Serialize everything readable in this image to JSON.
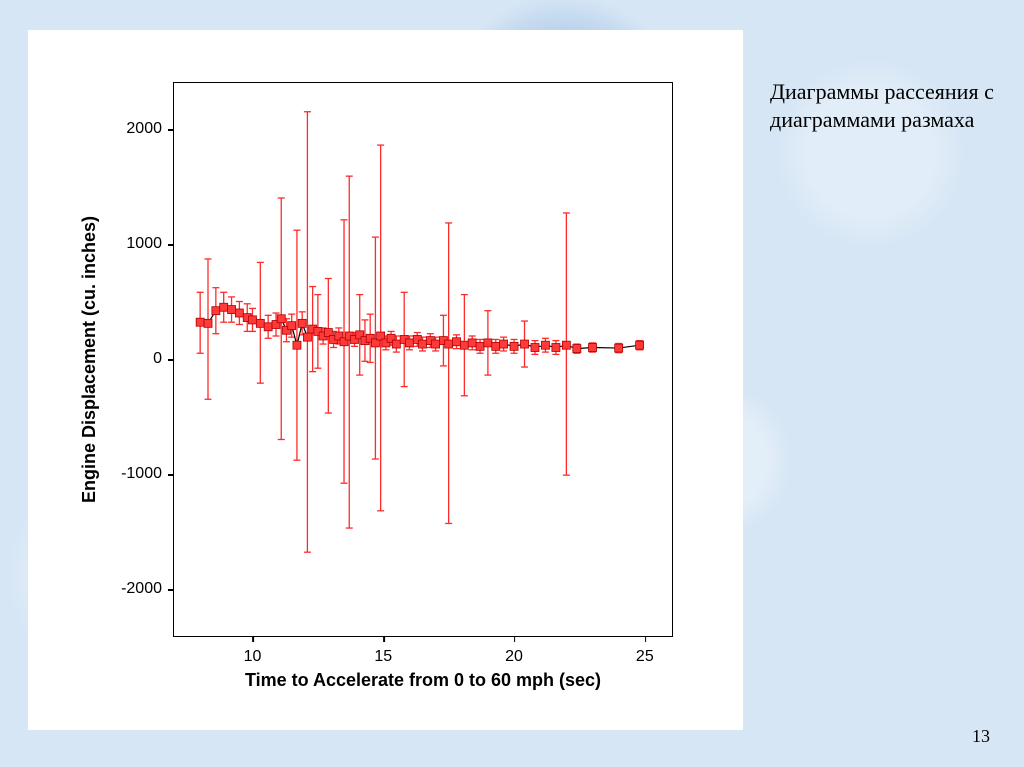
{
  "slide": {
    "background_color": "#d6e6f5",
    "caption": "Диаграммы рассеяния с диаграммами размаха",
    "page_number": "13"
  },
  "chart": {
    "type": "scatter-with-errorbars",
    "panel_bg": "#ffffff",
    "plot_border_color": "#000000",
    "x_label": "Time to Accelerate from 0 to 60 mph (sec)",
    "y_label": "Engine Displacement (cu. inches)",
    "label_font": "Arial",
    "label_fontsize": 18,
    "label_fontweight": "bold",
    "tick_fontsize": 13,
    "xlim": [
      7,
      26
    ],
    "ylim": [
      -2400,
      2400
    ],
    "xticks": [
      10,
      15,
      20,
      25
    ],
    "yticks": [
      -2000,
      -1000,
      0,
      1000,
      2000
    ],
    "marker": {
      "shape": "square",
      "size": 8,
      "fill": "#ff3a3a",
      "stroke": "#b00000",
      "stroke_width": 0.8
    },
    "line": {
      "color": "#000000",
      "width": 1.2
    },
    "errorbar": {
      "color": "#ff2a2a",
      "width": 1.3,
      "cap_width": 7
    },
    "series": [
      {
        "x": 8.0,
        "y": 320,
        "lo": 50,
        "hi": 580
      },
      {
        "x": 8.3,
        "y": 310,
        "lo": -350,
        "hi": 870
      },
      {
        "x": 8.6,
        "y": 420,
        "lo": 220,
        "hi": 620
      },
      {
        "x": 8.9,
        "y": 450,
        "lo": 320,
        "hi": 580
      },
      {
        "x": 9.2,
        "y": 430,
        "lo": 320,
        "hi": 540
      },
      {
        "x": 9.5,
        "y": 400,
        "lo": 300,
        "hi": 500
      },
      {
        "x": 9.8,
        "y": 360,
        "lo": 240,
        "hi": 480
      },
      {
        "x": 10.0,
        "y": 340,
        "lo": 240,
        "hi": 440
      },
      {
        "x": 10.3,
        "y": 310,
        "lo": -210,
        "hi": 840
      },
      {
        "x": 10.6,
        "y": 280,
        "lo": 180,
        "hi": 380
      },
      {
        "x": 10.9,
        "y": 300,
        "lo": 200,
        "hi": 400
      },
      {
        "x": 11.1,
        "y": 350,
        "lo": -700,
        "hi": 1400
      },
      {
        "x": 11.3,
        "y": 250,
        "lo": 150,
        "hi": 350
      },
      {
        "x": 11.5,
        "y": 290,
        "lo": 190,
        "hi": 390
      },
      {
        "x": 11.7,
        "y": 120,
        "lo": -880,
        "hi": 1120
      },
      {
        "x": 11.9,
        "y": 310,
        "lo": 210,
        "hi": 410
      },
      {
        "x": 12.1,
        "y": 190,
        "lo": -1680,
        "hi": 2150
      },
      {
        "x": 12.3,
        "y": 260,
        "lo": -110,
        "hi": 630
      },
      {
        "x": 12.5,
        "y": 240,
        "lo": -80,
        "hi": 560
      },
      {
        "x": 12.7,
        "y": 200,
        "lo": 130,
        "hi": 270
      },
      {
        "x": 12.9,
        "y": 230,
        "lo": -470,
        "hi": 700
      },
      {
        "x": 13.1,
        "y": 170,
        "lo": 100,
        "hi": 240
      },
      {
        "x": 13.3,
        "y": 200,
        "lo": 130,
        "hi": 270
      },
      {
        "x": 13.5,
        "y": 150,
        "lo": -1080,
        "hi": 1210
      },
      {
        "x": 13.7,
        "y": 200,
        "lo": -1470,
        "hi": 1590
      },
      {
        "x": 13.9,
        "y": 170,
        "lo": 110,
        "hi": 230
      },
      {
        "x": 14.1,
        "y": 210,
        "lo": -140,
        "hi": 560
      },
      {
        "x": 14.3,
        "y": 160,
        "lo": -20,
        "hi": 340
      },
      {
        "x": 14.5,
        "y": 180,
        "lo": -30,
        "hi": 390
      },
      {
        "x": 14.7,
        "y": 140,
        "lo": -870,
        "hi": 1060
      },
      {
        "x": 14.9,
        "y": 200,
        "lo": -1320,
        "hi": 1860
      },
      {
        "x": 15.1,
        "y": 140,
        "lo": 80,
        "hi": 200
      },
      {
        "x": 15.3,
        "y": 180,
        "lo": 120,
        "hi": 240
      },
      {
        "x": 15.5,
        "y": 130,
        "lo": 60,
        "hi": 200
      },
      {
        "x": 15.8,
        "y": 170,
        "lo": -240,
        "hi": 580
      },
      {
        "x": 16.0,
        "y": 140,
        "lo": 80,
        "hi": 200
      },
      {
        "x": 16.3,
        "y": 170,
        "lo": 110,
        "hi": 230
      },
      {
        "x": 16.5,
        "y": 130,
        "lo": 70,
        "hi": 190
      },
      {
        "x": 16.8,
        "y": 160,
        "lo": 100,
        "hi": 220
      },
      {
        "x": 17.0,
        "y": 130,
        "lo": 70,
        "hi": 190
      },
      {
        "x": 17.3,
        "y": 160,
        "lo": -60,
        "hi": 380
      },
      {
        "x": 17.5,
        "y": 130,
        "lo": -1430,
        "hi": 1183
      },
      {
        "x": 17.8,
        "y": 150,
        "lo": 90,
        "hi": 210
      },
      {
        "x": 18.1,
        "y": 120,
        "lo": -320,
        "hi": 560
      },
      {
        "x": 18.4,
        "y": 140,
        "lo": 80,
        "hi": 200
      },
      {
        "x": 18.7,
        "y": 110,
        "lo": 50,
        "hi": 170
      },
      {
        "x": 19.0,
        "y": 140,
        "lo": -140,
        "hi": 420
      },
      {
        "x": 19.3,
        "y": 110,
        "lo": 50,
        "hi": 170
      },
      {
        "x": 19.6,
        "y": 130,
        "lo": 70,
        "hi": 190
      },
      {
        "x": 20.0,
        "y": 110,
        "lo": 50,
        "hi": 170
      },
      {
        "x": 20.4,
        "y": 130,
        "lo": -70,
        "hi": 330
      },
      {
        "x": 20.8,
        "y": 100,
        "lo": 40,
        "hi": 160
      },
      {
        "x": 21.2,
        "y": 120,
        "lo": 60,
        "hi": 180
      },
      {
        "x": 21.6,
        "y": 100,
        "lo": 40,
        "hi": 160
      },
      {
        "x": 22.0,
        "y": 120,
        "lo": -1010,
        "hi": 1270
      },
      {
        "x": 22.4,
        "y": 90,
        "lo": 50,
        "hi": 130
      },
      {
        "x": 23.0,
        "y": 100,
        "lo": 60,
        "hi": 140
      },
      {
        "x": 24.0,
        "y": 95,
        "lo": 55,
        "hi": 135
      },
      {
        "x": 24.8,
        "y": 120,
        "lo": 80,
        "hi": 160
      }
    ]
  }
}
